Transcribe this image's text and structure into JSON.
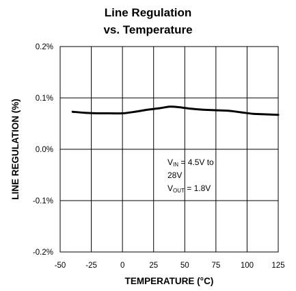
{
  "chart_data": {
    "type": "line",
    "title": "Line Regulation",
    "subtitle": "vs. Temperature",
    "xlabel": "TEMPERATURE (°C)",
    "ylabel": "LINE REGULATION (%)",
    "xlim": [
      -50,
      125
    ],
    "ylim": [
      -0.2,
      0.2
    ],
    "x_ticks": [
      -50,
      -25,
      0,
      25,
      50,
      75,
      100,
      125
    ],
    "x_tick_labels": [
      "-50",
      "-25",
      "0",
      "25",
      "50",
      "75",
      "100",
      "125"
    ],
    "y_ticks": [
      -0.2,
      -0.1,
      0.0,
      0.1,
      0.2
    ],
    "y_tick_labels": [
      "-0.2%",
      "-0.1%",
      "0.0%",
      "0.1%",
      "0.2%"
    ],
    "grid": true,
    "series": [
      {
        "x": [
          -40,
          -30,
          -20,
          -10,
          0,
          10,
          20,
          30,
          38,
          45,
          55,
          65,
          75,
          85,
          95,
          105,
          115,
          125
        ],
        "y": [
          0.073,
          0.071,
          0.07,
          0.07,
          0.07,
          0.073,
          0.077,
          0.08,
          0.083,
          0.082,
          0.079,
          0.077,
          0.076,
          0.075,
          0.072,
          0.069,
          0.068,
          0.067
        ]
      }
    ],
    "annotation": {
      "line1_main": "V",
      "line1_sub": "IN",
      "line1_rest": " = 4.5V to",
      "line2": "28V",
      "line3_main": "V",
      "line3_sub": "OUT",
      "line3_rest": " = 1.8V"
    }
  }
}
